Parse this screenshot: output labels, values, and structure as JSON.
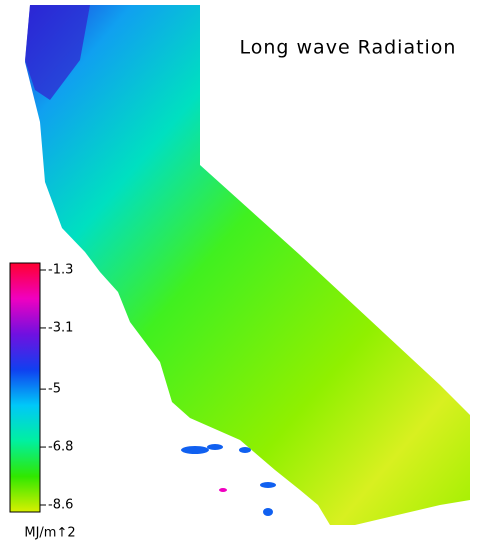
{
  "title": "Long wave Radiation",
  "colorbar": {
    "ticks": [
      -1.3,
      -3.1,
      -5.0,
      -6.8,
      -8.6
    ],
    "clim": [
      -8.6,
      -1.3
    ],
    "unit": "MJ/m↑2",
    "colors": [
      "#d8f000",
      "#30e800",
      "#00f0a0",
      "#00c8f8",
      "#1040f0",
      "#7010e0",
      "#f000c0",
      "#ff0030"
    ]
  }
}
